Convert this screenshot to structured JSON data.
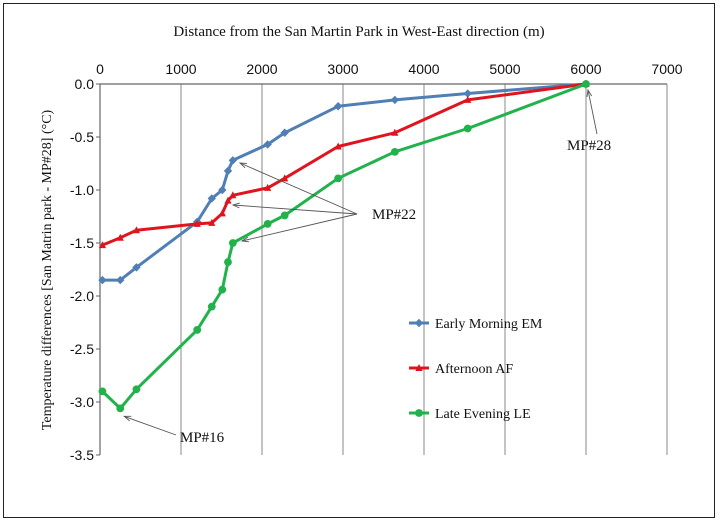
{
  "chart_data": {
    "type": "line",
    "title": "Distance from the San Martin Park in West-East direction (m)",
    "xlabel": "",
    "ylabel": "Temperature differences [San Matrin park - MP#28] (°C)",
    "xlim": [
      0,
      7000
    ],
    "ylim": [
      -3.5,
      0.0
    ],
    "x_ticks": [
      "0",
      "1000",
      "2000",
      "3000",
      "4000",
      "5000",
      "6000",
      "7000"
    ],
    "y_ticks": [
      "0.0",
      "-0.5",
      "-1.0",
      "-1.5",
      "-2.0",
      "-2.5",
      "-3.0",
      "-3.5"
    ],
    "x_axis_position": "top",
    "grid": "vertical",
    "legend_position": "bottom-right",
    "series": [
      {
        "name": "Early Morning EM",
        "color": "#4f7fb5",
        "marker": "diamond",
        "points": [
          [
            30,
            -1.85
          ],
          [
            250,
            -1.85
          ],
          [
            450,
            -1.73
          ],
          [
            1200,
            -1.3
          ],
          [
            1380,
            -1.08
          ],
          [
            1510,
            -1.0
          ],
          [
            1580,
            -0.82
          ],
          [
            1640,
            -0.72
          ],
          [
            2070,
            -0.57
          ],
          [
            2280,
            -0.46
          ],
          [
            2940,
            -0.21
          ],
          [
            3640,
            -0.15
          ],
          [
            4540,
            -0.09
          ],
          [
            6000,
            0.0
          ]
        ]
      },
      {
        "name": "Afternoon AF",
        "color": "#e0141e",
        "marker": "triangle",
        "points": [
          [
            30,
            -1.52
          ],
          [
            250,
            -1.45
          ],
          [
            450,
            -1.38
          ],
          [
            1200,
            -1.32
          ],
          [
            1380,
            -1.31
          ],
          [
            1510,
            -1.22
          ],
          [
            1580,
            -1.1
          ],
          [
            1640,
            -1.05
          ],
          [
            2070,
            -0.98
          ],
          [
            2280,
            -0.89
          ],
          [
            2940,
            -0.59
          ],
          [
            3640,
            -0.46
          ],
          [
            4540,
            -0.15
          ],
          [
            6000,
            0.0
          ]
        ]
      },
      {
        "name": "Late Evening LE",
        "color": "#22b24c",
        "marker": "circle",
        "points": [
          [
            30,
            -2.9
          ],
          [
            250,
            -3.06
          ],
          [
            450,
            -2.88
          ],
          [
            1200,
            -2.32
          ],
          [
            1380,
            -2.1
          ],
          [
            1510,
            -1.94
          ],
          [
            1580,
            -1.68
          ],
          [
            1640,
            -1.5
          ],
          [
            2070,
            -1.32
          ],
          [
            2280,
            -1.24
          ],
          [
            2940,
            -0.89
          ],
          [
            3640,
            -0.64
          ],
          [
            4540,
            -0.42
          ],
          [
            6000,
            0.0
          ]
        ]
      }
    ],
    "annotations": [
      {
        "text": "MP#28",
        "target": [
          6000,
          0.0
        ]
      },
      {
        "text": "MP#22",
        "targets": [
          [
            1640,
            -0.72
          ],
          [
            1640,
            -1.1
          ],
          [
            1700,
            -1.5
          ]
        ]
      },
      {
        "text": "MP#16",
        "target": [
          250,
          -3.06
        ]
      }
    ]
  }
}
